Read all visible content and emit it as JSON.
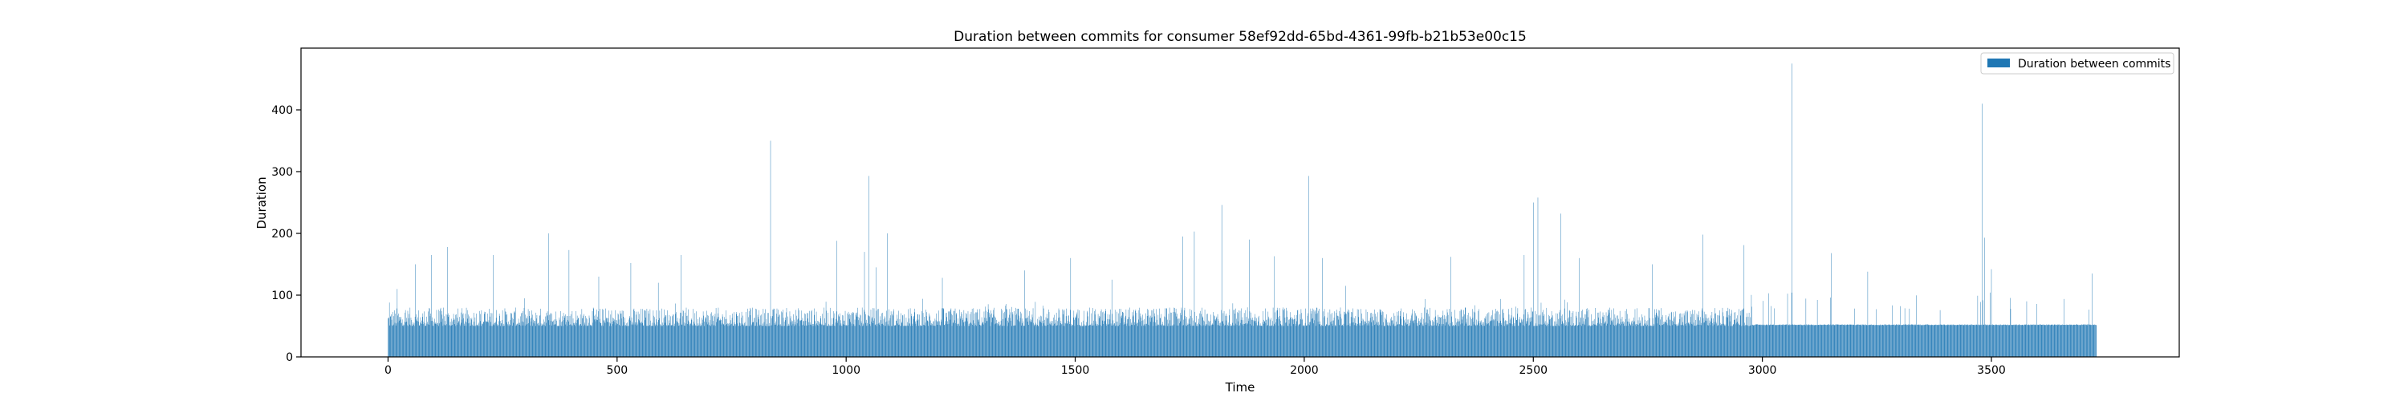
{
  "chart_data": {
    "type": "bar",
    "title": "Duration between commits for consumer 58ef92dd-65bd-4361-99fb-b21b53e00c15",
    "xlabel": "Time",
    "ylabel": "Duration",
    "xlim": [
      -190,
      3910
    ],
    "ylim": [
      0,
      500
    ],
    "x_ticks": [
      0,
      500,
      1000,
      1500,
      2000,
      2500,
      3000,
      3500
    ],
    "y_ticks": [
      0,
      100,
      200,
      300,
      400
    ],
    "grid": false,
    "legend": {
      "position": "top-right",
      "entries": [
        "Duration between commits"
      ]
    },
    "series": [
      {
        "name": "Duration between commits",
        "color": "#1f77b4",
        "x_start": 0,
        "x_step": 1,
        "count": 3730,
        "typical_range_first_segment": [
          50,
          80
        ],
        "segment_break_x": 2975,
        "typical_value_second_segment": 52,
        "spikes": [
          {
            "x": 3,
            "y": 88
          },
          {
            "x": 20,
            "y": 110
          },
          {
            "x": 60,
            "y": 150
          },
          {
            "x": 95,
            "y": 165
          },
          {
            "x": 130,
            "y": 178
          },
          {
            "x": 230,
            "y": 165
          },
          {
            "x": 350,
            "y": 200
          },
          {
            "x": 395,
            "y": 173
          },
          {
            "x": 460,
            "y": 130
          },
          {
            "x": 530,
            "y": 152
          },
          {
            "x": 590,
            "y": 120
          },
          {
            "x": 640,
            "y": 165
          },
          {
            "x": 835,
            "y": 350
          },
          {
            "x": 980,
            "y": 188
          },
          {
            "x": 1040,
            "y": 170
          },
          {
            "x": 1050,
            "y": 293
          },
          {
            "x": 1065,
            "y": 145
          },
          {
            "x": 1090,
            "y": 200
          },
          {
            "x": 1210,
            "y": 128
          },
          {
            "x": 1390,
            "y": 140
          },
          {
            "x": 1490,
            "y": 160
          },
          {
            "x": 1580,
            "y": 125
          },
          {
            "x": 1735,
            "y": 195
          },
          {
            "x": 1760,
            "y": 203
          },
          {
            "x": 1820,
            "y": 246
          },
          {
            "x": 1880,
            "y": 190
          },
          {
            "x": 1935,
            "y": 163
          },
          {
            "x": 2010,
            "y": 293
          },
          {
            "x": 2040,
            "y": 160
          },
          {
            "x": 2090,
            "y": 115
          },
          {
            "x": 2320,
            "y": 162
          },
          {
            "x": 2480,
            "y": 165
          },
          {
            "x": 2500,
            "y": 250
          },
          {
            "x": 2510,
            "y": 258
          },
          {
            "x": 2560,
            "y": 232
          },
          {
            "x": 2600,
            "y": 160
          },
          {
            "x": 2760,
            "y": 150
          },
          {
            "x": 2870,
            "y": 198
          },
          {
            "x": 2960,
            "y": 181
          },
          {
            "x": 3065,
            "y": 475
          },
          {
            "x": 3150,
            "y": 168
          },
          {
            "x": 3230,
            "y": 138
          },
          {
            "x": 3480,
            "y": 410
          },
          {
            "x": 3485,
            "y": 193
          },
          {
            "x": 3500,
            "y": 142
          },
          {
            "x": 3720,
            "y": 135
          }
        ]
      }
    ]
  }
}
